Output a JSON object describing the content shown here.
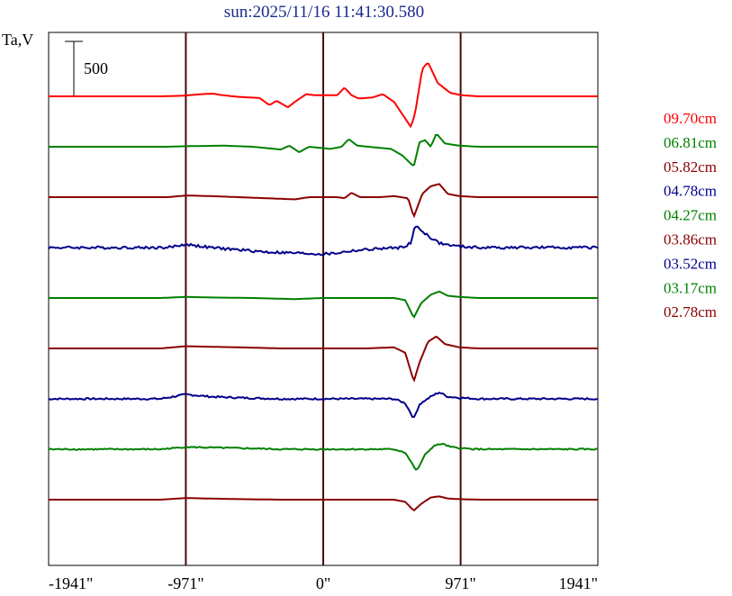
{
  "chart_data": {
    "type": "line",
    "title": "sun:2025/11/16 11:41:30.580",
    "ylabel": "Ta,V",
    "scale_bar_label": "500",
    "x_tick_labels": [
      "-1941\"",
      "-971\"",
      "0\"",
      "971\"",
      "1941\""
    ],
    "x_ticks": [
      -1941,
      -971,
      0,
      971,
      1941
    ],
    "xlim": [
      -1941,
      1941
    ],
    "grid": "vertical lines at -971, 0, 971",
    "legend_position": "right",
    "series": [
      {
        "name": "09.70cm",
        "color": "#ff0000",
        "noise": 0,
        "points": [
          [
            -1941,
            0
          ],
          [
            -1150,
            0
          ],
          [
            -1000,
            5
          ],
          [
            -860,
            20
          ],
          [
            -780,
            25
          ],
          [
            -720,
            12
          ],
          [
            -600,
            -5
          ],
          [
            -450,
            -15
          ],
          [
            -380,
            -80
          ],
          [
            -330,
            -40
          ],
          [
            -250,
            -100
          ],
          [
            -200,
            -50
          ],
          [
            -120,
            20
          ],
          [
            -60,
            10
          ],
          [
            100,
            10
          ],
          [
            150,
            80
          ],
          [
            200,
            10
          ],
          [
            250,
            -20
          ],
          [
            350,
            -10
          ],
          [
            420,
            20
          ],
          [
            500,
            -50
          ],
          [
            620,
            -280
          ],
          [
            650,
            -150
          ],
          [
            700,
            250
          ],
          [
            740,
            310
          ],
          [
            810,
            120
          ],
          [
            900,
            30
          ],
          [
            980,
            10
          ],
          [
            1100,
            0
          ],
          [
            1941,
            0
          ]
        ]
      },
      {
        "name": "06.81cm",
        "color": "#008000",
        "noise": 0,
        "points": [
          [
            -1941,
            0
          ],
          [
            -1100,
            0
          ],
          [
            -971,
            5
          ],
          [
            -700,
            10
          ],
          [
            -500,
            0
          ],
          [
            -300,
            -25
          ],
          [
            -240,
            10
          ],
          [
            -170,
            -50
          ],
          [
            -100,
            0
          ],
          [
            50,
            -20
          ],
          [
            130,
            0
          ],
          [
            180,
            70
          ],
          [
            240,
            10
          ],
          [
            400,
            -10
          ],
          [
            480,
            -20
          ],
          [
            560,
            -80
          ],
          [
            640,
            -180
          ],
          [
            680,
            40
          ],
          [
            720,
            60
          ],
          [
            760,
            0
          ],
          [
            800,
            120
          ],
          [
            860,
            30
          ],
          [
            960,
            10
          ],
          [
            1100,
            0
          ],
          [
            1941,
            0
          ]
        ]
      },
      {
        "name": "05.82cm",
        "color": "#8b0000",
        "noise": 0,
        "points": [
          [
            -1941,
            0
          ],
          [
            -1100,
            0
          ],
          [
            -971,
            15
          ],
          [
            -800,
            10
          ],
          [
            -600,
            0
          ],
          [
            -400,
            -10
          ],
          [
            -200,
            -20
          ],
          [
            -100,
            0
          ],
          [
            100,
            0
          ],
          [
            150,
            -10
          ],
          [
            200,
            40
          ],
          [
            260,
            0
          ],
          [
            400,
            0
          ],
          [
            500,
            10
          ],
          [
            600,
            -10
          ],
          [
            640,
            -180
          ],
          [
            700,
            30
          ],
          [
            760,
            100
          ],
          [
            820,
            120
          ],
          [
            880,
            30
          ],
          [
            960,
            10
          ],
          [
            1100,
            0
          ],
          [
            1941,
            0
          ]
        ]
      },
      {
        "name": "04.78cm",
        "color": "#00008b",
        "noise": 12,
        "points": [
          [
            -1941,
            0
          ],
          [
            -1100,
            0
          ],
          [
            -971,
            30
          ],
          [
            -800,
            0
          ],
          [
            -600,
            -20
          ],
          [
            -400,
            -40
          ],
          [
            -200,
            -50
          ],
          [
            0,
            -60
          ],
          [
            100,
            -50
          ],
          [
            200,
            -30
          ],
          [
            400,
            -10
          ],
          [
            550,
            0
          ],
          [
            620,
            40
          ],
          [
            650,
            200
          ],
          [
            700,
            150
          ],
          [
            760,
            90
          ],
          [
            820,
            40
          ],
          [
            900,
            20
          ],
          [
            960,
            10
          ],
          [
            1100,
            0
          ],
          [
            1941,
            0
          ]
        ]
      },
      {
        "name": "04.27cm",
        "color": "#008000",
        "noise": 0,
        "points": [
          [
            -1941,
            0
          ],
          [
            -1150,
            0
          ],
          [
            -971,
            10
          ],
          [
            -800,
            5
          ],
          [
            -500,
            0
          ],
          [
            -200,
            -10
          ],
          [
            0,
            0
          ],
          [
            300,
            0
          ],
          [
            500,
            0
          ],
          [
            580,
            -20
          ],
          [
            640,
            -180
          ],
          [
            690,
            -50
          ],
          [
            760,
            30
          ],
          [
            820,
            60
          ],
          [
            880,
            20
          ],
          [
            960,
            10
          ],
          [
            1100,
            0
          ],
          [
            1941,
            0
          ]
        ]
      },
      {
        "name": "03.86cm",
        "color": "#8b0000",
        "noise": 0,
        "points": [
          [
            -1941,
            0
          ],
          [
            -1150,
            0
          ],
          [
            -971,
            20
          ],
          [
            -800,
            15
          ],
          [
            -600,
            10
          ],
          [
            -300,
            0
          ],
          [
            0,
            0
          ],
          [
            300,
            0
          ],
          [
            500,
            10
          ],
          [
            580,
            -40
          ],
          [
            640,
            -300
          ],
          [
            680,
            -130
          ],
          [
            740,
            60
          ],
          [
            800,
            110
          ],
          [
            860,
            40
          ],
          [
            960,
            10
          ],
          [
            1100,
            0
          ],
          [
            1941,
            0
          ]
        ]
      },
      {
        "name": "03.52cm",
        "color": "#00008b",
        "noise": 8,
        "points": [
          [
            -1941,
            0
          ],
          [
            -1150,
            0
          ],
          [
            -971,
            40
          ],
          [
            -800,
            20
          ],
          [
            -600,
            10
          ],
          [
            -300,
            0
          ],
          [
            0,
            0
          ],
          [
            300,
            0
          ],
          [
            500,
            0
          ],
          [
            580,
            -40
          ],
          [
            640,
            -180
          ],
          [
            680,
            -50
          ],
          [
            760,
            20
          ],
          [
            820,
            60
          ],
          [
            880,
            20
          ],
          [
            960,
            10
          ],
          [
            1100,
            0
          ],
          [
            1941,
            0
          ]
        ]
      },
      {
        "name": "03.17cm",
        "color": "#008000",
        "noise": 6,
        "points": [
          [
            -1941,
            0
          ],
          [
            -1150,
            0
          ],
          [
            -971,
            20
          ],
          [
            -800,
            15
          ],
          [
            -600,
            10
          ],
          [
            -300,
            0
          ],
          [
            0,
            0
          ],
          [
            300,
            0
          ],
          [
            500,
            0
          ],
          [
            580,
            -30
          ],
          [
            660,
            -200
          ],
          [
            720,
            -50
          ],
          [
            780,
            30
          ],
          [
            840,
            50
          ],
          [
            900,
            20
          ],
          [
            960,
            10
          ],
          [
            1100,
            0
          ],
          [
            1941,
            0
          ]
        ]
      },
      {
        "name": "02.78cm",
        "color": "#8b0000",
        "noise": 0,
        "points": [
          [
            -1941,
            0
          ],
          [
            -1150,
            0
          ],
          [
            -971,
            15
          ],
          [
            -800,
            10
          ],
          [
            -600,
            5
          ],
          [
            -300,
            0
          ],
          [
            0,
            0
          ],
          [
            300,
            0
          ],
          [
            500,
            0
          ],
          [
            580,
            -20
          ],
          [
            640,
            -100
          ],
          [
            690,
            -40
          ],
          [
            760,
            20
          ],
          [
            820,
            30
          ],
          [
            880,
            10
          ],
          [
            960,
            5
          ],
          [
            1100,
            0
          ],
          [
            1941,
            0
          ]
        ]
      }
    ]
  }
}
